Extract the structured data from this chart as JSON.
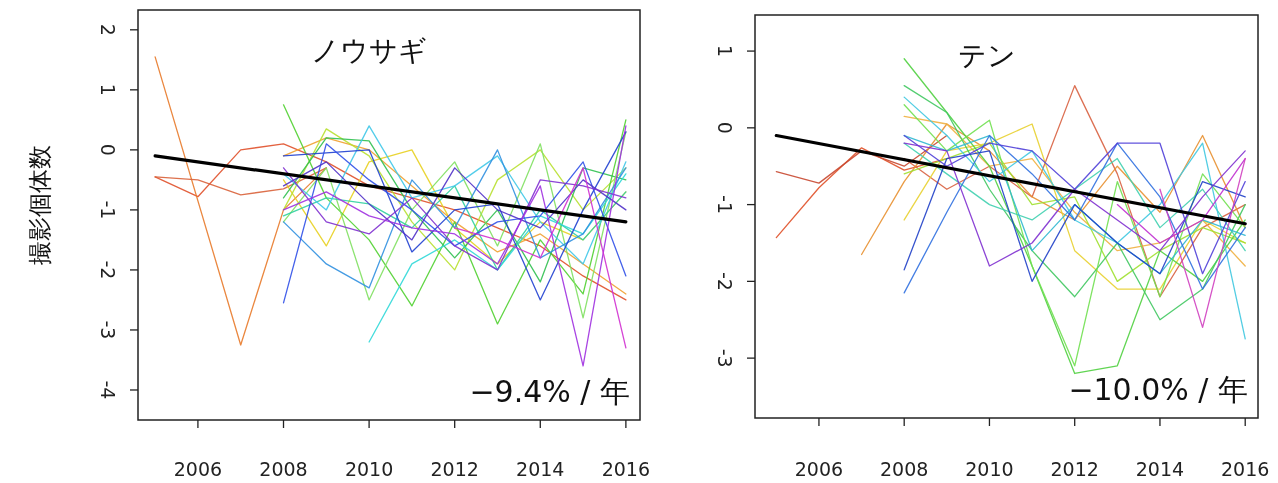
{
  "chart_data": [
    {
      "type": "line",
      "title": "ノウサギ",
      "ylabel": "撮影個体数",
      "annotations": [
        "−9.4% / 年"
      ],
      "xlim": [
        2004.6,
        2016.33
      ],
      "ylim": [
        -4.5,
        2.33
      ],
      "xticks": [
        2006,
        2008,
        2010,
        2012,
        2014,
        2016
      ],
      "yticks": [
        -4,
        -3,
        -2,
        -1,
        0,
        1,
        2
      ],
      "series": [
        {
          "color": "#e0502a",
          "x": [
            2005,
            2006,
            2007,
            2008,
            2009,
            2010,
            2011,
            2012,
            2013,
            2014,
            2015,
            2016
          ],
          "values": [
            -0.45,
            -0.78,
            0.0,
            0.1,
            -0.2,
            -0.6,
            -0.8,
            -1.0,
            -1.3,
            -1.6,
            -2.1,
            -2.5
          ]
        },
        {
          "color": "#e87a2a",
          "x": [
            2005,
            2007,
            2008,
            2009
          ],
          "values": [
            1.55,
            -3.25,
            -1.0,
            -0.3
          ]
        },
        {
          "color": "#d9623a",
          "x": [
            2005,
            2006,
            2007,
            2008,
            2009
          ],
          "values": [
            -0.45,
            -0.5,
            -0.75,
            -0.65,
            -0.3
          ]
        },
        {
          "color": "#f0a030",
          "x": [
            2008,
            2009,
            2010,
            2011,
            2012,
            2013,
            2014,
            2015,
            2016
          ],
          "values": [
            -0.1,
            0.2,
            0.0,
            -0.6,
            -1.2,
            -1.7,
            -1.4,
            -1.9,
            -2.4
          ]
        },
        {
          "color": "#e8d020",
          "x": [
            2008,
            2009,
            2010,
            2011,
            2012,
            2013,
            2014,
            2015,
            2016
          ],
          "values": [
            -0.5,
            -1.6,
            -0.2,
            0.0,
            -1.3,
            -1.9,
            -1.2,
            -1.5,
            -0.7
          ]
        },
        {
          "color": "#b8e030",
          "x": [
            2008,
            2009,
            2010,
            2011,
            2012,
            2013,
            2014,
            2015,
            2016
          ],
          "values": [
            -1.0,
            0.35,
            -0.1,
            -1.2,
            -2.0,
            -0.5,
            0.0,
            -1.0,
            -0.3
          ]
        },
        {
          "color": "#50d030",
          "x": [
            2008,
            2009,
            2010,
            2011,
            2012,
            2013,
            2014,
            2015,
            2016
          ],
          "values": [
            0.75,
            -0.8,
            -1.5,
            -2.6,
            -1.2,
            -2.9,
            -1.5,
            -2.4,
            0.5
          ]
        },
        {
          "color": "#30c050",
          "x": [
            2008,
            2009,
            2010,
            2011,
            2012,
            2013,
            2014,
            2015,
            2016
          ],
          "values": [
            -0.8,
            0.2,
            0.15,
            -1.0,
            -1.8,
            -1.0,
            -2.2,
            -0.3,
            -0.5
          ]
        },
        {
          "color": "#80e060",
          "x": [
            2008,
            2009,
            2010,
            2011,
            2012,
            2013,
            2014,
            2015,
            2016
          ],
          "values": [
            -1.2,
            -0.3,
            -2.5,
            -1.0,
            -0.2,
            -1.6,
            0.1,
            -2.8,
            0.3
          ]
        },
        {
          "color": "#30d0a0",
          "x": [
            2008,
            2009,
            2010,
            2011,
            2012,
            2013,
            2014,
            2015,
            2016
          ],
          "values": [
            -1.1,
            -0.8,
            -0.9,
            -1.3,
            -0.6,
            -2.0,
            -1.0,
            -1.5,
            -0.7
          ]
        },
        {
          "color": "#30d8d8",
          "x": [
            2010,
            2011,
            2012,
            2013,
            2014,
            2015,
            2016
          ],
          "values": [
            -3.2,
            -1.9,
            -1.5,
            -2.0,
            -1.1,
            -1.4,
            -0.4
          ]
        },
        {
          "color": "#40c8e8",
          "x": [
            2008,
            2009,
            2010,
            2011,
            2012,
            2013,
            2014,
            2015,
            2016
          ],
          "values": [
            -0.4,
            -1.0,
            0.4,
            -0.8,
            -0.6,
            -0.1,
            -1.2,
            -1.9,
            -0.2
          ]
        },
        {
          "color": "#3090e0",
          "x": [
            2008,
            2009,
            2010,
            2011,
            2012,
            2013,
            2014,
            2015,
            2016
          ],
          "values": [
            -1.2,
            -1.9,
            -2.3,
            -0.5,
            -1.3,
            0.0,
            -1.8,
            -1.4,
            -0.3
          ]
        },
        {
          "color": "#2040d0",
          "x": [
            2008,
            2009,
            2010,
            2011,
            2012,
            2013,
            2014,
            2015,
            2016
          ],
          "values": [
            -0.1,
            -0.05,
            0.0,
            -1.7,
            -1.0,
            -0.9,
            -2.5,
            -1.0,
            0.3
          ]
        },
        {
          "color": "#3050e8",
          "x": [
            2008,
            2009,
            2010,
            2011,
            2012,
            2013,
            2014,
            2015,
            2016
          ],
          "values": [
            -2.55,
            0.1,
            -0.5,
            -1.0,
            -1.6,
            -1.2,
            -1.1,
            -0.2,
            -2.1
          ]
        },
        {
          "color": "#5030c8",
          "x": [
            2008,
            2009,
            2010,
            2011,
            2012,
            2013,
            2014,
            2015,
            2016
          ],
          "values": [
            -0.6,
            -0.2,
            -0.9,
            -1.5,
            -0.3,
            -1.0,
            -1.3,
            -0.5,
            -1.0
          ]
        },
        {
          "color": "#8030d0",
          "x": [
            2008,
            2009,
            2010,
            2011,
            2012,
            2013,
            2014,
            2015,
            2016
          ],
          "values": [
            -0.3,
            -1.2,
            -1.4,
            -0.8,
            -1.6,
            -2.0,
            -0.5,
            -0.6,
            -0.8
          ]
        },
        {
          "color": "#a030e0",
          "x": [
            2008,
            2009,
            2010,
            2011,
            2012,
            2013,
            2014,
            2015,
            2016
          ],
          "values": [
            -1.0,
            -0.7,
            -1.1,
            -1.3,
            -1.4,
            -1.9,
            -0.6,
            -3.6,
            0.4
          ]
        },
        {
          "color": "#d030d0",
          "x": [
            2012,
            2013,
            2014,
            2015,
            2016
          ],
          "values": [
            -1.3,
            -1.5,
            -1.8,
            -0.3,
            -3.3
          ]
        },
        {
          "type": "line",
          "color": "#000000",
          "x": [
            2005,
            2016
          ],
          "values": [
            -0.1,
            -1.2
          ]
        }
      ]
    },
    {
      "type": "line",
      "title": "テン",
      "annotations": [
        "−10.0% / 年"
      ],
      "xlim": [
        2004.5,
        2016.3
      ],
      "ylim": [
        -3.78,
        1.47
      ],
      "xticks": [
        2006,
        2008,
        2010,
        2012,
        2014,
        2016
      ],
      "yticks": [
        -3,
        -2,
        -1,
        0,
        1
      ],
      "series": [
        {
          "color": "#e05028",
          "x": [
            2005,
            2006,
            2007,
            2008,
            2009
          ],
          "values": [
            -1.43,
            -0.78,
            -0.26,
            -0.55,
            -0.4
          ]
        },
        {
          "color": "#c84830",
          "x": [
            2005,
            2006,
            2007,
            2008,
            2009
          ],
          "values": [
            -0.57,
            -0.72,
            -0.3,
            -0.5,
            -0.1
          ]
        },
        {
          "color": "#d86040",
          "x": [
            2008,
            2009,
            2010,
            2011,
            2012,
            2013,
            2014,
            2015,
            2016
          ],
          "values": [
            -0.4,
            -0.8,
            -0.5,
            -0.9,
            0.55,
            -0.6,
            -2.2,
            -1.3,
            -1.0
          ]
        },
        {
          "color": "#e89030",
          "x": [
            2007,
            2008,
            2009,
            2010,
            2011,
            2012,
            2013,
            2014,
            2015,
            2016
          ],
          "values": [
            -1.65,
            -0.7,
            0.05,
            -0.3,
            -0.9,
            -1.2,
            -0.5,
            -1.1,
            -0.1,
            -1.3
          ]
        },
        {
          "color": "#f0b040",
          "x": [
            2008,
            2009,
            2010,
            2011,
            2012,
            2013,
            2014,
            2015,
            2016
          ],
          "values": [
            0.15,
            0.05,
            -0.5,
            -0.4,
            -1.1,
            -1.6,
            -1.5,
            -1.2,
            -1.8
          ]
        },
        {
          "color": "#e8d030",
          "x": [
            2008,
            2009,
            2010,
            2011,
            2012,
            2013,
            2014,
            2015,
            2016
          ],
          "values": [
            -1.2,
            -0.3,
            -0.2,
            0.05,
            -1.6,
            -2.1,
            -2.1,
            -1.2,
            -1.5
          ]
        },
        {
          "color": "#a0e030",
          "x": [
            2008,
            2009,
            2010,
            2011,
            2012,
            2013,
            2014,
            2015,
            2016
          ],
          "values": [
            -0.6,
            -0.4,
            -0.2,
            -1.0,
            -0.9,
            -2.0,
            -1.6,
            -1.3,
            -1.5
          ]
        },
        {
          "color": "#50d040",
          "x": [
            2008,
            2009,
            2010,
            2011,
            2012,
            2013,
            2014,
            2015,
            2016
          ],
          "values": [
            0.9,
            0.2,
            -0.5,
            -1.8,
            -3.2,
            -3.1,
            -1.6,
            -2.0,
            -1.2
          ]
        },
        {
          "color": "#40c860",
          "x": [
            2008,
            2009,
            2010,
            2011,
            2012,
            2013,
            2014,
            2015,
            2016
          ],
          "values": [
            0.55,
            0.2,
            -0.8,
            -1.6,
            -2.2,
            -1.5,
            -2.5,
            -2.1,
            -1.0
          ]
        },
        {
          "color": "#70e050",
          "x": [
            2008,
            2009,
            2010,
            2011,
            2012,
            2013,
            2014,
            2015,
            2016
          ],
          "values": [
            0.3,
            -0.3,
            0.1,
            -1.8,
            -3.1,
            -0.7,
            -2.2,
            -0.6,
            -1.3
          ]
        },
        {
          "color": "#40d0b0",
          "x": [
            2008,
            2009,
            2010,
            2011,
            2012,
            2013,
            2014,
            2015,
            2016
          ],
          "values": [
            -0.2,
            -0.6,
            -1.0,
            -1.2,
            -0.8,
            -0.4,
            -1.3,
            -0.8,
            -1.6
          ]
        },
        {
          "color": "#40c8e0",
          "x": [
            2008,
            2009,
            2010,
            2011,
            2012,
            2013,
            2014,
            2015,
            2016
          ],
          "values": [
            0.4,
            -0.1,
            -0.7,
            -0.3,
            -1.2,
            -1.5,
            -1.0,
            -0.2,
            -2.75
          ]
        },
        {
          "color": "#30b8d0",
          "x": [
            2008,
            2009,
            2010,
            2011,
            2012,
            2013,
            2014,
            2015,
            2016
          ],
          "values": [
            -0.1,
            -0.3,
            -0.1,
            -1.6,
            -1.0,
            -1.5,
            -1.9,
            -1.2,
            -1.4
          ]
        },
        {
          "color": "#3070e0",
          "x": [
            2008,
            2009,
            2010,
            2011,
            2012,
            2013,
            2014,
            2015,
            2016
          ],
          "values": [
            -2.15,
            -1.1,
            -0.1,
            -0.6,
            -1.2,
            -0.2,
            -0.9,
            -2.1,
            -1.3
          ]
        },
        {
          "color": "#2040c8",
          "x": [
            2008,
            2009,
            2010,
            2011,
            2012,
            2013,
            2014,
            2015,
            2016
          ],
          "values": [
            -1.85,
            -0.4,
            -0.3,
            -2.0,
            -1.0,
            -1.5,
            -1.9,
            -0.7,
            -0.9
          ]
        },
        {
          "color": "#5040d8",
          "x": [
            2008,
            2009,
            2010,
            2011,
            2012,
            2013,
            2014,
            2015,
            2016
          ],
          "values": [
            -0.1,
            -0.5,
            -0.2,
            -0.3,
            -0.8,
            -0.2,
            -0.2,
            -1.9,
            -0.7
          ]
        },
        {
          "color": "#8030d0",
          "x": [
            2008,
            2009,
            2010,
            2011,
            2012,
            2013,
            2014,
            2015,
            2016
          ],
          "values": [
            -0.2,
            -0.3,
            -1.8,
            -1.5,
            -0.8,
            -1.2,
            -1.6,
            -0.9,
            -0.3
          ]
        },
        {
          "color": "#c030d0",
          "x": [
            2013,
            2014,
            2015,
            2016
          ],
          "values": [
            -1.0,
            -1.5,
            -1.2,
            -0.4
          ]
        },
        {
          "color": "#d040c0",
          "x": [
            2014,
            2015,
            2016
          ],
          "values": [
            -0.8,
            -2.6,
            -0.4
          ]
        },
        {
          "type": "line",
          "color": "#000000",
          "x": [
            2005,
            2016
          ],
          "values": [
            -0.1,
            -1.25
          ]
        }
      ]
    }
  ]
}
